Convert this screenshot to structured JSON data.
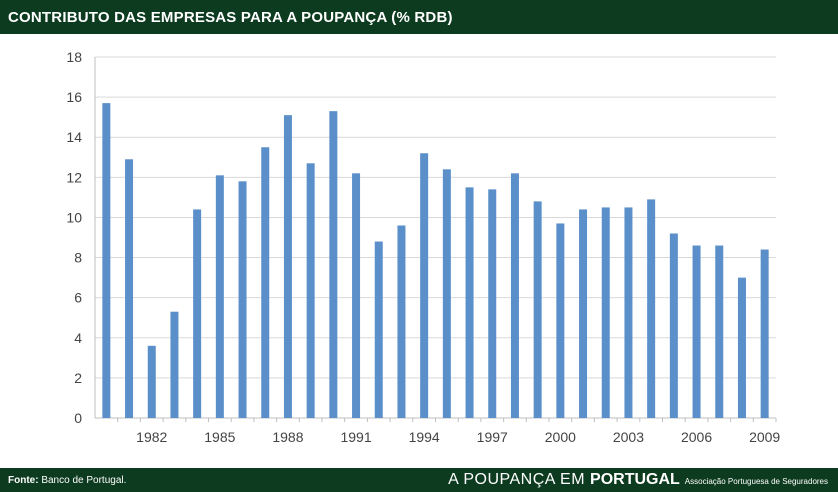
{
  "header": {
    "title": "CONTRIBUTO DAS EMPRESAS PARA A POUPANÇA (% RDB)"
  },
  "footer": {
    "source_label": "Fonte:",
    "source_text": "Banco de Portugal.",
    "brand_part1": "A POUPANÇA EM",
    "brand_part2": "PORTUGAL",
    "brand_sub": "Associação Portuguesa de Seguradores"
  },
  "colors": {
    "header_bg": "#0d3b1f",
    "bar": "#5b8fca",
    "grid": "#d9d9d9"
  },
  "chart_data": {
    "type": "bar",
    "title": "CONTRIBUTO DAS EMPRESAS PARA A POUPANÇA (% RDB)",
    "xlabel": "",
    "ylabel": "",
    "ylim": [
      0,
      18
    ],
    "yticks": [
      0,
      2,
      4,
      6,
      8,
      10,
      12,
      14,
      16,
      18
    ],
    "grid": true,
    "categories": [
      1980,
      1981,
      1982,
      1983,
      1984,
      1985,
      1986,
      1987,
      1988,
      1989,
      1990,
      1991,
      1992,
      1993,
      1994,
      1995,
      1996,
      1997,
      1998,
      1999,
      2000,
      2001,
      2002,
      2003,
      2004,
      2005,
      2006,
      2007,
      2008,
      2009
    ],
    "values": [
      15.7,
      12.9,
      3.6,
      5.3,
      10.4,
      12.1,
      11.8,
      13.5,
      15.1,
      12.7,
      15.3,
      12.2,
      8.8,
      9.6,
      13.2,
      12.4,
      11.5,
      11.4,
      12.2,
      10.8,
      9.7,
      10.4,
      10.5,
      10.5,
      10.9,
      9.2,
      8.6,
      8.6,
      7.0,
      8.4
    ],
    "tick_labels": [
      "1982",
      "1985",
      "1988",
      "1991",
      "1994",
      "1997",
      "2000",
      "2003",
      "2006",
      "2009"
    ]
  }
}
